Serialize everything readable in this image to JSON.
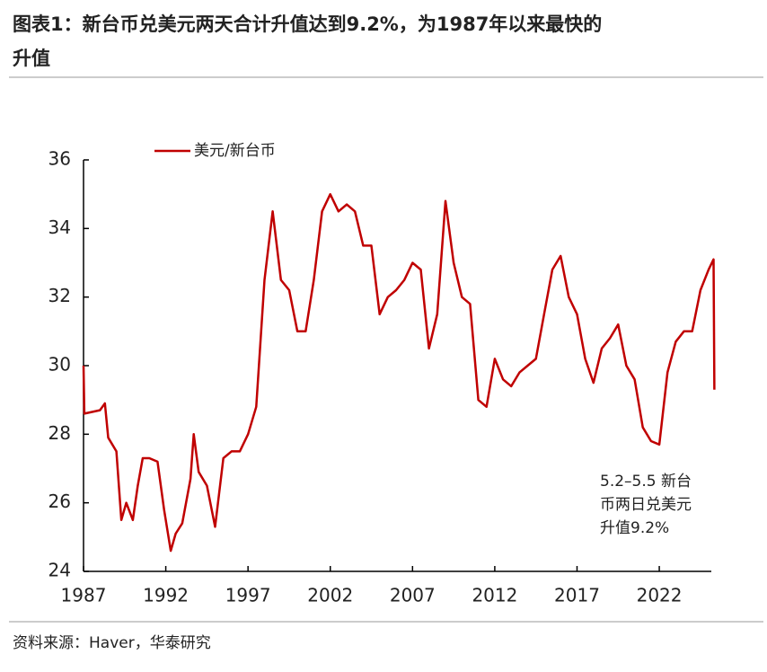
{
  "chart_data": {
    "type": "line",
    "title_lines": [
      "图表1：新台币兑美元两天合计升值达到9.2%，为1987年以来最快的",
      "升值"
    ],
    "source": "资料来源：Haver，华泰研究",
    "annotation_lines": [
      "5.2–5.5 新台",
      "币两日兑美元",
      "升值9.2%"
    ],
    "legend": "top-left",
    "x": [
      1987.0,
      1987.05,
      1988.0,
      1988.3,
      1988.5,
      1989.0,
      1989.3,
      1989.6,
      1990.0,
      1990.3,
      1990.6,
      1991.0,
      1991.5,
      1991.9,
      1992.3,
      1992.6,
      1993.0,
      1993.5,
      1993.7,
      1994.0,
      1994.5,
      1995.0,
      1995.5,
      1996.0,
      1996.5,
      1997.0,
      1997.5,
      1998.0,
      1998.5,
      1999.0,
      1999.5,
      2000.0,
      2000.5,
      2001.0,
      2001.5,
      2002.0,
      2002.5,
      2003.0,
      2003.5,
      2004.0,
      2004.5,
      2005.0,
      2005.5,
      2006.0,
      2006.5,
      2007.0,
      2007.5,
      2008.0,
      2008.5,
      2009.0,
      2009.5,
      2010.0,
      2010.5,
      2011.0,
      2011.5,
      2012.0,
      2012.5,
      2013.0,
      2013.5,
      2014.0,
      2014.5,
      2015.0,
      2015.5,
      2016.0,
      2016.5,
      2017.0,
      2017.5,
      2018.0,
      2018.5,
      2019.0,
      2019.5,
      2020.0,
      2020.5,
      2021.0,
      2021.5,
      2022.0,
      2022.5,
      2023.0,
      2023.5,
      2024.0,
      2024.5,
      2025.0,
      2025.3,
      2025.35
    ],
    "series": [
      {
        "name": "美元/新台币",
        "color": "#c00000",
        "values": [
          30.0,
          28.6,
          28.7,
          28.9,
          27.9,
          27.5,
          25.5,
          26.0,
          25.5,
          26.5,
          27.3,
          27.3,
          27.2,
          25.8,
          24.6,
          25.1,
          25.4,
          26.7,
          28.0,
          26.9,
          26.5,
          25.3,
          27.3,
          27.5,
          27.5,
          28.0,
          28.8,
          32.5,
          34.5,
          32.5,
          32.2,
          31.0,
          31.0,
          32.5,
          34.5,
          35.0,
          34.5,
          34.7,
          34.5,
          33.5,
          33.5,
          31.5,
          32.0,
          32.2,
          32.5,
          33.0,
          32.8,
          30.5,
          31.5,
          34.8,
          33.0,
          32.0,
          31.8,
          29.0,
          28.8,
          30.2,
          29.6,
          29.4,
          29.8,
          30.0,
          30.2,
          31.5,
          32.8,
          33.2,
          32.0,
          31.5,
          30.2,
          29.5,
          30.5,
          30.8,
          31.2,
          30.0,
          29.6,
          28.2,
          27.8,
          27.7,
          29.8,
          30.7,
          31.0,
          31.0,
          32.2,
          32.8,
          33.1,
          29.3
        ]
      }
    ],
    "xlim": [
      1987,
      2025.6
    ],
    "xticks": [
      1987,
      1992,
      1997,
      2002,
      2007,
      2012,
      2017,
      2022
    ],
    "ylim": [
      24,
      36
    ],
    "yticks": [
      24,
      26,
      28,
      30,
      32,
      34,
      36
    ]
  }
}
